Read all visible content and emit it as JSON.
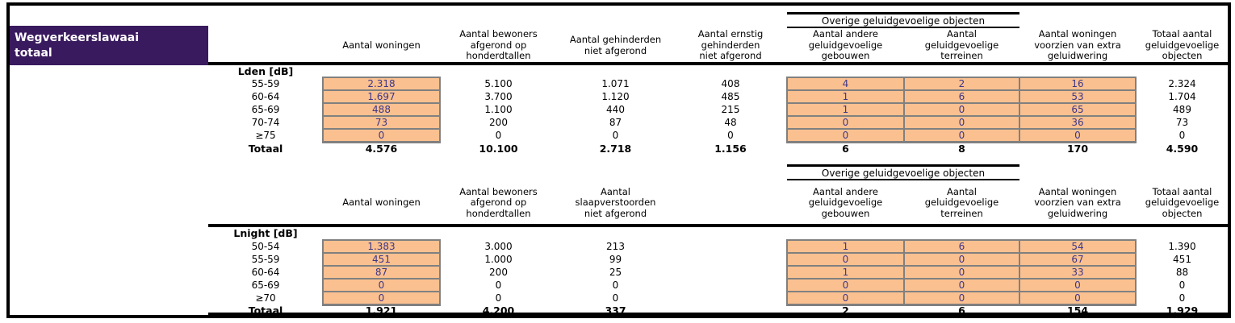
{
  "title": {
    "line1": "Wegverkeerslawaai",
    "line2": "totaal"
  },
  "group_header": "Overige geluidgevoelige objecten",
  "colors": {
    "title_bg": "#3A1A5E",
    "input_cell_bg": "#FAC090",
    "input_cell_border": "#808080",
    "input_cell_text": "#3E3787",
    "rule": "#000000"
  },
  "tables": [
    {
      "band_label": "Lden [dB]",
      "columns": [
        "Aantal woningen",
        "Aantal bewoners\nafgerond op\nhonderdtallen",
        "Aantal gehinderden\nniet afgerond",
        "Aantal ernstig\ngehinderden\nniet afgerond",
        "Aantal andere\ngeluidgevoelige\ngebouwen",
        "Aantal\ngeluidgevoelige\nterreinen",
        "Aantal woningen\nvoorzien van extra\ngeluidwering",
        "Totaal aantal\ngeluidgevoelige\nobjecten"
      ],
      "rows": [
        {
          "label": "55-59",
          "values": [
            "2.318",
            "5.100",
            "1.071",
            "408",
            "4",
            "2",
            "16",
            "2.324"
          ]
        },
        {
          "label": "60-64",
          "values": [
            "1.697",
            "3.700",
            "1.120",
            "485",
            "1",
            "6",
            "53",
            "1.704"
          ]
        },
        {
          "label": "65-69",
          "values": [
            "488",
            "1.100",
            "440",
            "215",
            "1",
            "0",
            "65",
            "489"
          ]
        },
        {
          "label": "70-74",
          "values": [
            "73",
            "200",
            "87",
            "48",
            "0",
            "0",
            "36",
            "73"
          ]
        },
        {
          "label": "≥75",
          "values": [
            "0",
            "0",
            "0",
            "0",
            "0",
            "0",
            "0",
            "0"
          ]
        }
      ],
      "total": {
        "label": "Totaal",
        "values": [
          "4.576",
          "10.100",
          "2.718",
          "1.156",
          "6",
          "8",
          "170",
          "4.590"
        ]
      }
    },
    {
      "band_label": "Lnight [dB]",
      "columns": [
        "Aantal woningen",
        "Aantal bewoners\nafgerond op\nhonderdtallen",
        "Aantal\nslaapverstoorden\nniet afgerond",
        "",
        "Aantal andere\ngeluidgevoelige\ngebouwen",
        "Aantal\ngeluidgevoelige\nterreinen",
        "Aantal woningen\nvoorzien van extra\ngeluidwering",
        "Totaal aantal\ngeluidgevoelige\nobjecten"
      ],
      "rows": [
        {
          "label": "50-54",
          "values": [
            "1.383",
            "3.000",
            "213",
            "",
            "1",
            "6",
            "54",
            "1.390"
          ]
        },
        {
          "label": "55-59",
          "values": [
            "451",
            "1.000",
            "99",
            "",
            "0",
            "0",
            "67",
            "451"
          ]
        },
        {
          "label": "60-64",
          "values": [
            "87",
            "200",
            "25",
            "",
            "1",
            "0",
            "33",
            "88"
          ]
        },
        {
          "label": "65-69",
          "values": [
            "0",
            "0",
            "0",
            "",
            "0",
            "0",
            "0",
            "0"
          ]
        },
        {
          "label": "≥70",
          "values": [
            "0",
            "0",
            "0",
            "",
            "0",
            "0",
            "0",
            "0"
          ]
        }
      ],
      "total": {
        "label": "Totaal",
        "values": [
          "1.921",
          "4.200",
          "337",
          "",
          "2",
          "6",
          "154",
          "1.929"
        ]
      }
    }
  ]
}
